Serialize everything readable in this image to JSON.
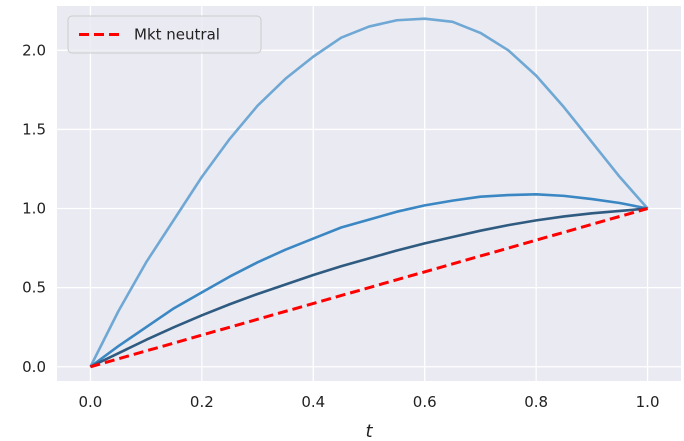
{
  "chart_data": {
    "type": "line",
    "title": "",
    "xlabel": "t",
    "ylabel": "",
    "xlim": [
      -0.06,
      1.06
    ],
    "ylim": [
      -0.09,
      2.28
    ],
    "x_ticks": [
      0.0,
      0.2,
      0.4,
      0.6,
      0.8,
      1.0
    ],
    "x_tick_labels": [
      "0.0",
      "0.2",
      "0.4",
      "0.6",
      "0.8",
      "1.0"
    ],
    "y_ticks": [
      0.0,
      0.5,
      1.0,
      1.5,
      2.0
    ],
    "y_tick_labels": [
      "0.0",
      "0.5",
      "1.0",
      "1.5",
      "2.0"
    ],
    "grid": true,
    "background_color": "#eaeaf2",
    "grid_color": "#ffffff",
    "legend": {
      "placement": "top-left",
      "entries": [
        {
          "label": "Mkt neutral",
          "color": "#ff0000",
          "style": "dashed"
        }
      ]
    },
    "series": [
      {
        "color": "#6fa8d4",
        "style": "solid",
        "x": [
          0,
          0.05,
          0.1,
          0.15,
          0.2,
          0.25,
          0.3,
          0.35,
          0.4,
          0.45,
          0.5,
          0.55,
          0.6,
          0.65,
          0.7,
          0.75,
          0.8,
          0.85,
          0.9,
          0.95,
          1.0
        ],
        "y": [
          0,
          0.35,
          0.66,
          0.93,
          1.2,
          1.44,
          1.65,
          1.82,
          1.96,
          2.08,
          2.15,
          2.19,
          2.2,
          2.18,
          2.11,
          2.0,
          1.84,
          1.64,
          1.42,
          1.2,
          1.0
        ]
      },
      {
        "color": "#3a87c3",
        "style": "solid",
        "x": [
          0,
          0.05,
          0.1,
          0.15,
          0.2,
          0.25,
          0.3,
          0.35,
          0.4,
          0.45,
          0.5,
          0.55,
          0.6,
          0.65,
          0.7,
          0.75,
          0.8,
          0.85,
          0.9,
          0.95,
          1.0
        ],
        "y": [
          0,
          0.13,
          0.25,
          0.37,
          0.47,
          0.57,
          0.66,
          0.74,
          0.81,
          0.88,
          0.93,
          0.98,
          1.02,
          1.05,
          1.075,
          1.085,
          1.09,
          1.08,
          1.06,
          1.035,
          1.0
        ]
      },
      {
        "color": "#2f5b80",
        "style": "solid",
        "x": [
          0,
          0.05,
          0.1,
          0.15,
          0.2,
          0.25,
          0.3,
          0.35,
          0.4,
          0.45,
          0.5,
          0.55,
          0.6,
          0.65,
          0.7,
          0.75,
          0.8,
          0.85,
          0.9,
          0.95,
          1.0
        ],
        "y": [
          0,
          0.085,
          0.17,
          0.25,
          0.325,
          0.395,
          0.46,
          0.52,
          0.58,
          0.635,
          0.685,
          0.735,
          0.78,
          0.82,
          0.86,
          0.895,
          0.925,
          0.95,
          0.97,
          0.985,
          1.0
        ]
      },
      {
        "name": "Mkt neutral",
        "color": "#ff0000",
        "style": "dashed",
        "x": [
          0,
          1.0
        ],
        "y": [
          0,
          1.0
        ]
      }
    ]
  }
}
